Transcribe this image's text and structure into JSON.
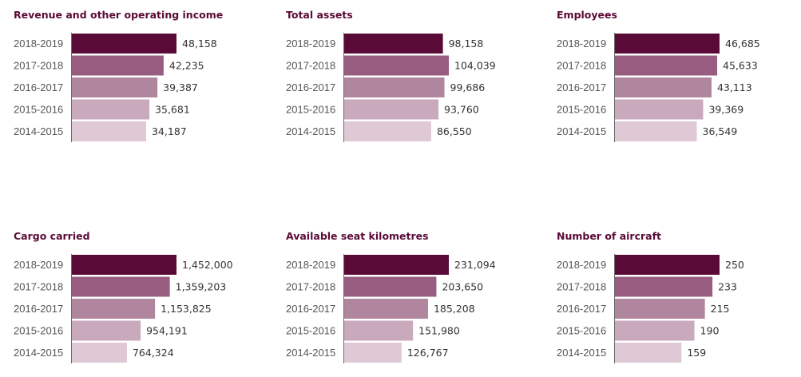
{
  "chart_data": [
    {
      "type": "bar",
      "title": "Revenue and other operating income",
      "categories": [
        "2018-2019",
        "2017-2018",
        "2016-2017",
        "2015-2016",
        "2014-2015"
      ],
      "values": [
        48158,
        42235,
        39387,
        35681,
        34187
      ],
      "labels": [
        "48,158",
        "42,235",
        "39,387",
        "35,681",
        "34,187"
      ],
      "orientation": "horizontal",
      "xlim": [
        0,
        48158
      ]
    },
    {
      "type": "bar",
      "title": "Total assets",
      "categories": [
        "2018-2019",
        "2017-2018",
        "2016-2017",
        "2015-2016",
        "2014-2015"
      ],
      "values": [
        98158,
        104039,
        99686,
        93760,
        86550
      ],
      "labels": [
        "98,158",
        "104,039",
        "99,686",
        "93,760",
        "86,550"
      ],
      "orientation": "horizontal",
      "xlim": [
        0,
        104039
      ]
    },
    {
      "type": "bar",
      "title": "Employees",
      "categories": [
        "2018-2019",
        "2017-2018",
        "2016-2017",
        "2015-2016",
        "2014-2015"
      ],
      "values": [
        46685,
        45633,
        43113,
        39369,
        36549
      ],
      "labels": [
        "46,685",
        "45,633",
        "43,113",
        "39,369",
        "36,549"
      ],
      "orientation": "horizontal",
      "xlim": [
        0,
        46685
      ]
    },
    {
      "type": "bar",
      "title": "Cargo carried",
      "categories": [
        "2018-2019",
        "2017-2018",
        "2016-2017",
        "2015-2016",
        "2014-2015"
      ],
      "values": [
        1452000,
        1359203,
        1153825,
        954191,
        764324
      ],
      "labels": [
        "1,452,000",
        "1,359,203",
        "1,153,825",
        "954,191",
        "764,324"
      ],
      "orientation": "horizontal",
      "xlim": [
        0,
        1452000
      ]
    },
    {
      "type": "bar",
      "title": "Available seat kilometres",
      "categories": [
        "2018-2019",
        "2017-2018",
        "2016-2017",
        "2015-2016",
        "2014-2015"
      ],
      "values": [
        231094,
        203650,
        185208,
        151980,
        126767
      ],
      "labels": [
        "231,094",
        "203,650",
        "185,208",
        "151,980",
        "126,767"
      ],
      "orientation": "horizontal",
      "xlim": [
        0,
        231094
      ]
    },
    {
      "type": "bar",
      "title": "Number of aircraft",
      "categories": [
        "2018-2019",
        "2017-2018",
        "2016-2017",
        "2015-2016",
        "2014-2015"
      ],
      "values": [
        250,
        233,
        215,
        190,
        159
      ],
      "labels": [
        "250",
        "233",
        "215",
        "190",
        "159"
      ],
      "orientation": "horizontal",
      "xlim": [
        0,
        250
      ]
    }
  ],
  "colors": {
    "title": "#5a0a36",
    "axis": "#6b6b6b",
    "bars": [
      "#5a0a36",
      "#975c80",
      "#b0869f",
      "#c9aabc",
      "#dfc9d5"
    ]
  }
}
